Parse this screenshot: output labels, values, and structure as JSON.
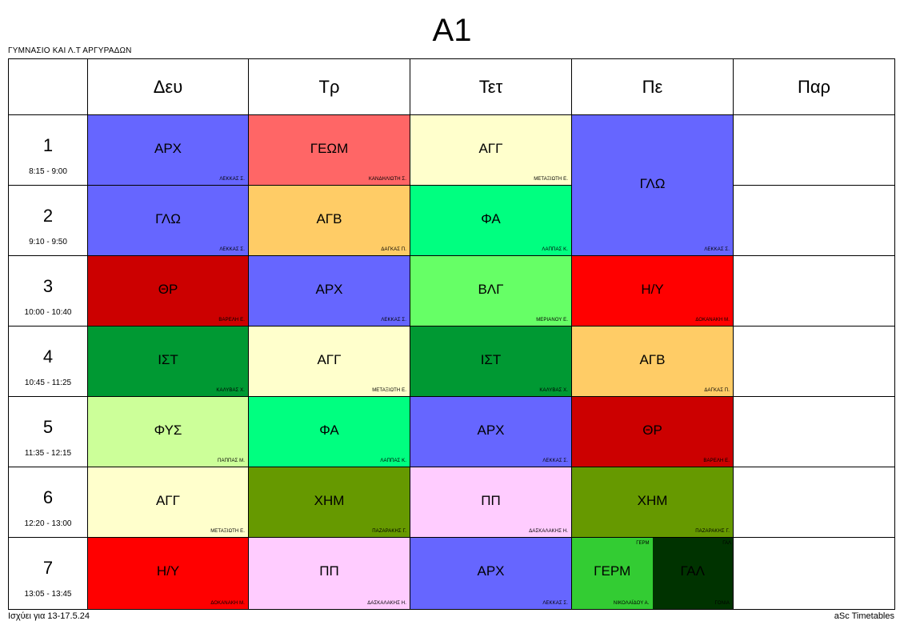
{
  "title": "A1",
  "school": "ΓΥΜΝΑΣΙΟ ΚΑΙ Λ.Τ ΑΡΓΥΡΑΔΩΝ",
  "footer": {
    "validity": "Ισχύει για 13-17.5.24",
    "brand": "aSc Timetables"
  },
  "days": [
    "Δευ",
    "Τρ",
    "Τετ",
    "Πε",
    "Παρ"
  ],
  "periods": [
    {
      "num": "1",
      "time": "8:15 - 9:00"
    },
    {
      "num": "2",
      "time": "9:10 - 9:50"
    },
    {
      "num": "3",
      "time": "10:00 - 10:40"
    },
    {
      "num": "4",
      "time": "10:45 - 11:25"
    },
    {
      "num": "5",
      "time": "11:35 - 12:15"
    },
    {
      "num": "6",
      "time": "12:20 - 13:00"
    },
    {
      "num": "7",
      "time": "13:05 - 13:45"
    }
  ],
  "lessons": [
    {
      "day": 0,
      "period": 0,
      "span": 1,
      "subject": "ΑΡΧ",
      "teacher": "ΛΕΚΚΑΣ Σ.",
      "color": "#6666ff"
    },
    {
      "day": 0,
      "period": 1,
      "span": 1,
      "subject": "ΓΛΩ",
      "teacher": "ΛΕΚΚΑΣ Σ.",
      "color": "#6666ff"
    },
    {
      "day": 0,
      "period": 2,
      "span": 1,
      "subject": "ΘΡ",
      "teacher": "ΒΑΡΕΛΗ Ε.",
      "color": "#cc0000"
    },
    {
      "day": 0,
      "period": 3,
      "span": 1,
      "subject": "ΙΣΤ",
      "teacher": "ΚΑΛΥΒΑΣ Χ.",
      "color": "#009933"
    },
    {
      "day": 0,
      "period": 4,
      "span": 1,
      "subject": "ΦΥΣ",
      "teacher": "ΠΑΠΠΑΣ Μ.",
      "color": "#ccff99"
    },
    {
      "day": 0,
      "period": 5,
      "span": 1,
      "subject": "ΑΓΓ",
      "teacher": "ΜΕΤΑΞΙΩΤΗ Ε.",
      "color": "#ffffcc"
    },
    {
      "day": 0,
      "period": 6,
      "span": 1,
      "subject": "Η/Υ",
      "teacher": "ΔΟΚΑΝΑΚΗ Μ.",
      "color": "#ff0000"
    },
    {
      "day": 1,
      "period": 0,
      "span": 1,
      "subject": "ΓΕΩΜ",
      "teacher": "ΚΑΝΔΗΛΙΩΤΗ Σ.",
      "color": "#ff6666"
    },
    {
      "day": 1,
      "period": 1,
      "span": 1,
      "subject": "ΑΓΒ",
      "teacher": "ΔΑΓΚΑΣ Π.",
      "color": "#ffcc66"
    },
    {
      "day": 1,
      "period": 2,
      "span": 1,
      "subject": "ΑΡΧ",
      "teacher": "ΛΕΚΚΑΣ Σ.",
      "color": "#6666ff"
    },
    {
      "day": 1,
      "period": 3,
      "span": 1,
      "subject": "ΑΓΓ",
      "teacher": "ΜΕΤΑΞΙΩΤΗ Ε.",
      "color": "#ffffcc"
    },
    {
      "day": 1,
      "period": 4,
      "span": 1,
      "subject": "ΦΑ",
      "teacher": "ΛΑΠΠΑΣ Κ.",
      "color": "#00ff80"
    },
    {
      "day": 1,
      "period": 5,
      "span": 1,
      "subject": "ΧΗΜ",
      "teacher": "ΠΑΖΑΡΑΚΗΣ Γ.",
      "color": "#669900"
    },
    {
      "day": 1,
      "period": 6,
      "span": 1,
      "subject": "ΠΠ",
      "teacher": "ΔΑΣΚΑΛΑΚΗΣ Η.",
      "color": "#ffccff"
    },
    {
      "day": 2,
      "period": 0,
      "span": 1,
      "subject": "ΑΓΓ",
      "teacher": "ΜΕΤΑΞΙΩΤΗ Ε.",
      "color": "#ffffcc"
    },
    {
      "day": 2,
      "period": 1,
      "span": 1,
      "subject": "ΦΑ",
      "teacher": "ΛΑΠΠΑΣ Κ.",
      "color": "#00ff80"
    },
    {
      "day": 2,
      "period": 2,
      "span": 1,
      "subject": "ΒΛΓ",
      "teacher": "ΜΕΡΙΑΝΟΥ Ε.",
      "color": "#66ff66"
    },
    {
      "day": 2,
      "period": 3,
      "span": 1,
      "subject": "ΙΣΤ",
      "teacher": "ΚΑΛΥΒΑΣ Χ.",
      "color": "#009933"
    },
    {
      "day": 2,
      "period": 4,
      "span": 1,
      "subject": "ΑΡΧ",
      "teacher": "ΛΕΚΚΑΣ Σ.",
      "color": "#6666ff"
    },
    {
      "day": 2,
      "period": 5,
      "span": 1,
      "subject": "ΠΠ",
      "teacher": "ΔΑΣΚΑΛΑΚΗΣ Η.",
      "color": "#ffccff"
    },
    {
      "day": 2,
      "period": 6,
      "span": 1,
      "subject": "ΑΡΧ",
      "teacher": "ΛΕΚΚΑΣ Σ.",
      "color": "#6666ff"
    },
    {
      "day": 3,
      "period": 0,
      "span": 2,
      "subject": "ΓΛΩ",
      "teacher": "ΛΕΚΚΑΣ Σ.",
      "color": "#6666ff"
    },
    {
      "day": 3,
      "period": 2,
      "span": 1,
      "subject": "Η/Υ",
      "teacher": "ΔΟΚΑΝΑΚΗ Μ.",
      "color": "#ff0000"
    },
    {
      "day": 3,
      "period": 3,
      "span": 1,
      "subject": "ΑΓΒ",
      "teacher": "ΔΑΓΚΑΣ Π.",
      "color": "#ffcc66"
    },
    {
      "day": 3,
      "period": 4,
      "span": 1,
      "subject": "ΘΡ",
      "teacher": "ΒΑΡΕΛΗ Ε.",
      "color": "#cc0000"
    },
    {
      "day": 3,
      "period": 5,
      "span": 1,
      "subject": "ΧΗΜ",
      "teacher": "ΠΑΖΑΡΑΚΗΣ Γ.",
      "color": "#669900"
    }
  ],
  "split_lessons": [
    {
      "day": 3,
      "period": 6,
      "parts": [
        {
          "group": "ΓΕΡΜ",
          "subject": "ΓΕΡΜ",
          "teacher": "ΝΙΚΟΛΑΪΔΟΥ Α.",
          "color": "#33cc33"
        },
        {
          "group": "ΓΑΛ",
          "subject": "ΓΑΛ",
          "teacher": "ΓΟΝΙΑ",
          "color": "#003300"
        }
      ]
    }
  ]
}
